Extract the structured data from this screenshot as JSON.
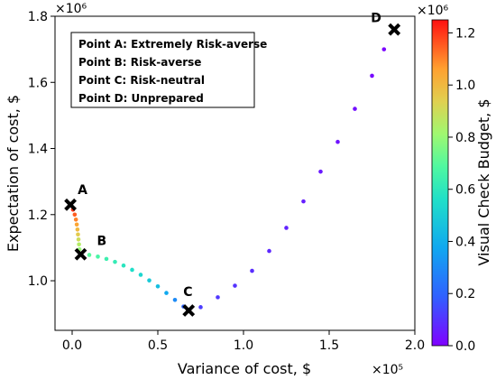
{
  "chart_data": {
    "type": "scatter",
    "xlabel": "Variance of cost, $",
    "ylabel": "Expectation of cost, $",
    "x_multiplier_label": "×10⁵",
    "y_multiplier_label": "×10⁶",
    "x_range": [
      -0.1,
      2.0
    ],
    "y_range": [
      0.85,
      1.8
    ],
    "x_ticks": [
      0.0,
      0.5,
      1.0,
      1.5,
      2.0
    ],
    "x_tick_labels": [
      "0.0",
      "0.5",
      "1.0",
      "1.5",
      "2.0"
    ],
    "y_ticks": [
      1.0,
      1.2,
      1.4,
      1.6,
      1.8
    ],
    "y_tick_labels": [
      "1.0",
      "1.2",
      "1.4",
      "1.6",
      "1.8"
    ],
    "colorbar": {
      "label": "Visual Check Budget, $",
      "multiplier_label": "×10⁶",
      "range": [
        0.0,
        1.25
      ],
      "ticks": [
        0.0,
        0.2,
        0.4,
        0.6,
        0.8,
        1.0,
        1.2
      ],
      "tick_labels": [
        "0.0",
        "0.2",
        "0.4",
        "0.6",
        "0.8",
        "1.0",
        "1.2"
      ],
      "colormap": "rainbow"
    },
    "marked_points": [
      {
        "label": "A",
        "x": -0.01,
        "y": 1.23
      },
      {
        "label": "B",
        "x": 0.05,
        "y": 1.08
      },
      {
        "label": "C",
        "x": 0.68,
        "y": 0.91
      },
      {
        "label": "D",
        "x": 1.88,
        "y": 1.76
      }
    ],
    "legend_box": [
      "Point A: Extremely Risk-averse",
      "Point B: Risk-averse",
      "Point C: Risk-neutral",
      "Point D: Unprepared"
    ],
    "legend_position": "top-left",
    "series_points": [
      {
        "x": -0.01,
        "y": 1.23,
        "budget": 1.25
      },
      {
        "x": 0.005,
        "y": 1.215,
        "budget": 1.2
      },
      {
        "x": 0.015,
        "y": 1.2,
        "budget": 1.15
      },
      {
        "x": 0.022,
        "y": 1.185,
        "budget": 1.1
      },
      {
        "x": 0.027,
        "y": 1.17,
        "budget": 1.05
      },
      {
        "x": 0.031,
        "y": 1.155,
        "budget": 1.0
      },
      {
        "x": 0.034,
        "y": 1.14,
        "budget": 0.95
      },
      {
        "x": 0.037,
        "y": 1.125,
        "budget": 0.9
      },
      {
        "x": 0.04,
        "y": 1.11,
        "budget": 0.85
      },
      {
        "x": 0.043,
        "y": 1.095,
        "budget": 0.8
      },
      {
        "x": 0.05,
        "y": 1.08,
        "budget": 0.74
      },
      {
        "x": 0.1,
        "y": 1.078,
        "budget": 0.7
      },
      {
        "x": 0.15,
        "y": 1.073,
        "budget": 0.67
      },
      {
        "x": 0.2,
        "y": 1.066,
        "budget": 0.64
      },
      {
        "x": 0.25,
        "y": 1.057,
        "budget": 0.62
      },
      {
        "x": 0.3,
        "y": 1.046,
        "budget": 0.59
      },
      {
        "x": 0.35,
        "y": 1.033,
        "budget": 0.56
      },
      {
        "x": 0.4,
        "y": 1.018,
        "budget": 0.53
      },
      {
        "x": 0.45,
        "y": 1.001,
        "budget": 0.49
      },
      {
        "x": 0.5,
        "y": 0.983,
        "budget": 0.45
      },
      {
        "x": 0.55,
        "y": 0.963,
        "budget": 0.38
      },
      {
        "x": 0.6,
        "y": 0.942,
        "budget": 0.3
      },
      {
        "x": 0.65,
        "y": 0.922,
        "budget": 0.2
      },
      {
        "x": 0.68,
        "y": 0.91,
        "budget": 0.13
      },
      {
        "x": 0.75,
        "y": 0.92,
        "budget": 0.12
      },
      {
        "x": 0.85,
        "y": 0.95,
        "budget": 0.11
      },
      {
        "x": 0.95,
        "y": 0.985,
        "budget": 0.1
      },
      {
        "x": 1.05,
        "y": 1.03,
        "budget": 0.09
      },
      {
        "x": 1.15,
        "y": 1.09,
        "budget": 0.08
      },
      {
        "x": 1.25,
        "y": 1.16,
        "budget": 0.07
      },
      {
        "x": 1.35,
        "y": 1.24,
        "budget": 0.06
      },
      {
        "x": 1.45,
        "y": 1.33,
        "budget": 0.05
      },
      {
        "x": 1.55,
        "y": 1.42,
        "budget": 0.04
      },
      {
        "x": 1.65,
        "y": 1.52,
        "budget": 0.03
      },
      {
        "x": 1.75,
        "y": 1.62,
        "budget": 0.02
      },
      {
        "x": 1.82,
        "y": 1.7,
        "budget": 0.01
      },
      {
        "x": 1.88,
        "y": 1.76,
        "budget": 0.0
      }
    ]
  }
}
